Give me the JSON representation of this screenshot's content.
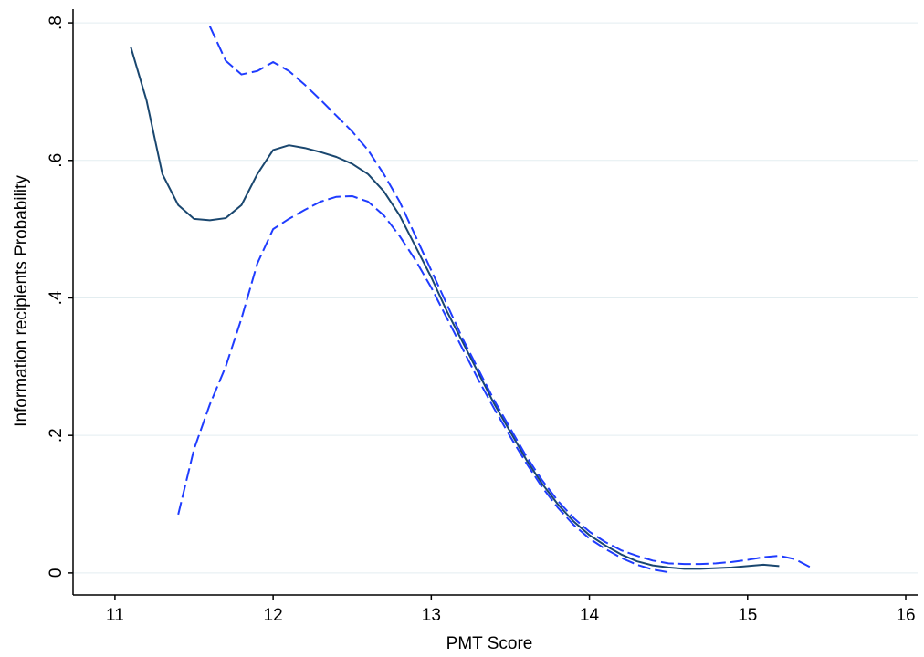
{
  "chart_data": {
    "type": "line",
    "x_label": "PMT Score",
    "y_label": "Information recipients Probability",
    "x": [
      11.1,
      11.2,
      11.3,
      11.4,
      11.5,
      11.6,
      11.7,
      11.8,
      11.9,
      12.0,
      12.1,
      12.2,
      12.3,
      12.4,
      12.5,
      12.6,
      12.7,
      12.8,
      12.9,
      13.0,
      13.1,
      13.2,
      13.3,
      13.4,
      13.5,
      13.6,
      13.7,
      13.8,
      13.9,
      14.0,
      14.1,
      14.2,
      14.3,
      14.4,
      14.5,
      14.6,
      14.7,
      14.8,
      14.9,
      15.0,
      15.1,
      15.2,
      15.3,
      15.4
    ],
    "series": [
      {
        "color": "#1a476f",
        "style": "solid",
        "values": [
          0.765,
          0.687,
          0.58,
          0.535,
          0.515,
          0.513,
          0.516,
          0.535,
          0.58,
          0.615,
          0.622,
          0.618,
          0.612,
          0.605,
          0.595,
          0.58,
          0.555,
          0.52,
          0.475,
          0.43,
          0.38,
          0.335,
          0.29,
          0.245,
          0.205,
          0.165,
          0.13,
          0.1,
          0.075,
          0.055,
          0.04,
          0.027,
          0.017,
          0.011,
          0.008,
          0.006,
          0.006,
          0.007,
          0.008,
          0.01,
          0.012,
          0.01,
          null,
          null
        ]
      },
      {
        "color": "#1f3cff",
        "style": "dashed",
        "values": [
          null,
          null,
          null,
          null,
          null,
          0.795,
          0.745,
          0.725,
          0.73,
          0.743,
          0.73,
          0.71,
          0.688,
          0.665,
          0.642,
          0.615,
          0.58,
          0.54,
          0.49,
          0.44,
          0.39,
          0.34,
          0.295,
          0.25,
          0.21,
          0.17,
          0.135,
          0.105,
          0.08,
          0.06,
          0.045,
          0.033,
          0.025,
          0.018,
          0.014,
          0.013,
          0.013,
          0.014,
          0.016,
          0.019,
          0.023,
          0.025,
          0.02,
          0.008
        ]
      },
      {
        "color": "#1f3cff",
        "style": "dashed",
        "values": [
          null,
          null,
          null,
          0.085,
          0.18,
          0.245,
          0.3,
          0.37,
          0.45,
          0.5,
          0.515,
          0.528,
          0.54,
          0.547,
          0.548,
          0.54,
          0.52,
          0.49,
          0.455,
          0.415,
          0.37,
          0.325,
          0.28,
          0.238,
          0.198,
          0.16,
          0.125,
          0.095,
          0.07,
          0.05,
          0.035,
          0.022,
          0.012,
          0.005,
          0.001,
          null,
          null,
          null,
          null,
          null,
          null,
          null,
          null,
          null
        ]
      }
    ],
    "xlim": [
      10.735,
      16.075
    ],
    "xticks": [
      11,
      12,
      13,
      14,
      15,
      16
    ],
    "ylim": [
      -0.032,
      0.82
    ],
    "yticks": [
      0,
      {
        "value": 0.2,
        "label": ".2"
      },
      {
        "value": 0.4,
        "label": ".4"
      },
      {
        "value": 0.6,
        "label": ".6"
      },
      {
        "value": 0.8,
        "label": ".8"
      }
    ],
    "grid": true,
    "grid_color": "#e3edf0"
  }
}
